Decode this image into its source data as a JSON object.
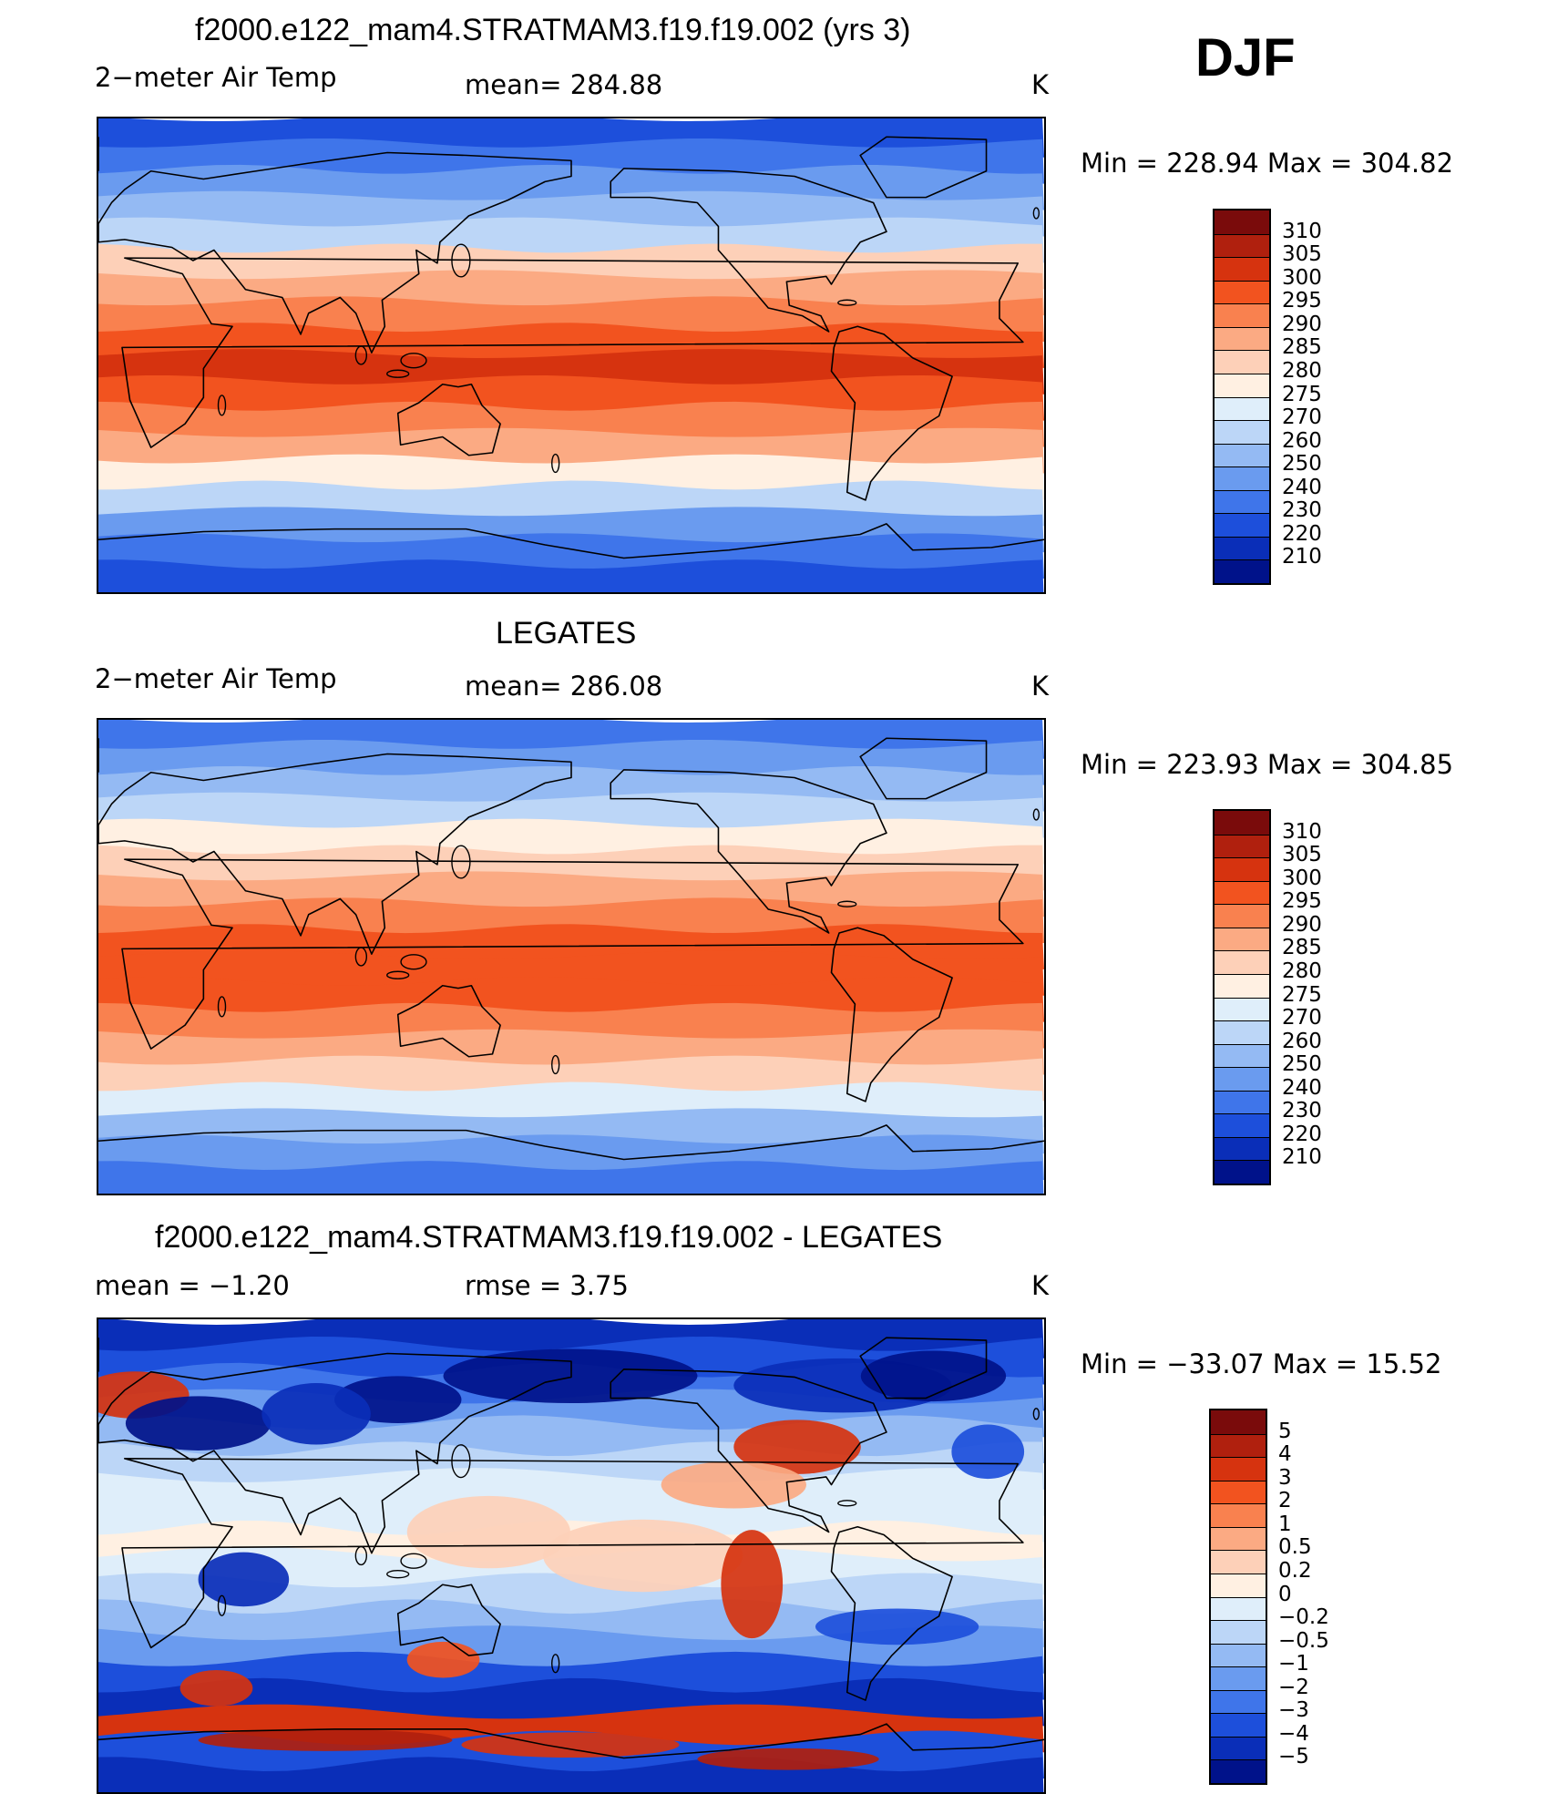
{
  "season": "DJF",
  "panels": [
    {
      "title": "f2000.e122_mam4.STRATMAM3.f19.f19.002 (yrs 3)",
      "left_label": "2−meter Air Temp",
      "center_label": "mean=  284.88",
      "units": "K",
      "minmax": "Min  =  228.94  Max  =  304.82",
      "colorbar": {
        "labels": [
          "310",
          "305",
          "300",
          "295",
          "290",
          "285",
          "280",
          "275",
          "270",
          "260",
          "250",
          "240",
          "230",
          "220",
          "210"
        ],
        "colors": [
          "#7a0b0b",
          "#b0200e",
          "#d6330f",
          "#f2531f",
          "#f9814f",
          "#fbaa83",
          "#fdd0b8",
          "#fff0e2",
          "#dfeefa",
          "#bcd6f7",
          "#94baf3",
          "#6a9bef",
          "#3f75ea",
          "#1d4fdb",
          "#0a2eb8",
          "#00128a"
        ]
      },
      "map": {
        "kind": "absolute",
        "band_colors": [
          "#1d4fdb",
          "#3f75ea",
          "#6a9bef",
          "#94baf3",
          "#bcd6f7",
          "#fdd0b8",
          "#fbaa83",
          "#f9814f",
          "#f2531f",
          "#d6330f",
          "#f2531f",
          "#f9814f",
          "#fbaa83",
          "#fff0e2",
          "#bcd6f7",
          "#6a9bef",
          "#3f75ea",
          "#1d4fdb"
        ]
      }
    },
    {
      "title": "LEGATES",
      "left_label": "2−meter Air Temp",
      "center_label": "mean=  286.08",
      "units": "K",
      "minmax": "Min  =  223.93  Max  =  304.85",
      "colorbar": {
        "labels": [
          "310",
          "305",
          "300",
          "295",
          "290",
          "285",
          "280",
          "275",
          "270",
          "260",
          "250",
          "240",
          "230",
          "220",
          "210"
        ],
        "colors": [
          "#7a0b0b",
          "#b0200e",
          "#d6330f",
          "#f2531f",
          "#f9814f",
          "#fbaa83",
          "#fdd0b8",
          "#fff0e2",
          "#dfeefa",
          "#bcd6f7",
          "#94baf3",
          "#6a9bef",
          "#3f75ea",
          "#1d4fdb",
          "#0a2eb8",
          "#00128a"
        ]
      },
      "map": {
        "kind": "absolute",
        "band_colors": [
          "#3f75ea",
          "#6a9bef",
          "#94baf3",
          "#bcd6f7",
          "#fff0e2",
          "#fdd0b8",
          "#fbaa83",
          "#f9814f",
          "#f2531f",
          "#f2531f",
          "#f2531f",
          "#f9814f",
          "#fbaa83",
          "#fdd0b8",
          "#dfeefa",
          "#94baf3",
          "#6a9bef",
          "#3f75ea"
        ]
      }
    },
    {
      "title": "f2000.e122_mam4.STRATMAM3.f19.f19.002 - LEGATES",
      "left_label": "mean =    −1.20",
      "center_label": "rmse =      3.75",
      "units": "K",
      "minmax": "Min  =  −33.07  Max  =    15.52",
      "colorbar": {
        "labels": [
          "5",
          "4",
          "3",
          "2",
          "1",
          "0.5",
          "0.2",
          "0",
          "−0.2",
          "−0.5",
          "−1",
          "−2",
          "−3",
          "−4",
          "−5"
        ],
        "colors": [
          "#7a0b0b",
          "#b0200e",
          "#d6330f",
          "#f2531f",
          "#f9814f",
          "#fbaa83",
          "#fdd0b8",
          "#fff0e2",
          "#dfeefa",
          "#bcd6f7",
          "#94baf3",
          "#6a9bef",
          "#3f75ea",
          "#1d4fdb",
          "#0a2eb8",
          "#00128a"
        ]
      },
      "map": {
        "kind": "difference",
        "band_colors": [
          "#0a2eb8",
          "#1d4fdb",
          "#3f75ea",
          "#6a9bef",
          "#94baf3",
          "#bcd6f7",
          "#dfeefa",
          "#dfeefa",
          "#fff0e2",
          "#dfeefa",
          "#bcd6f7",
          "#94baf3",
          "#6a9bef",
          "#1d4fdb",
          "#0a2eb8",
          "#d6330f",
          "#1d4fdb",
          "#0a2eb8"
        ]
      }
    }
  ]
}
